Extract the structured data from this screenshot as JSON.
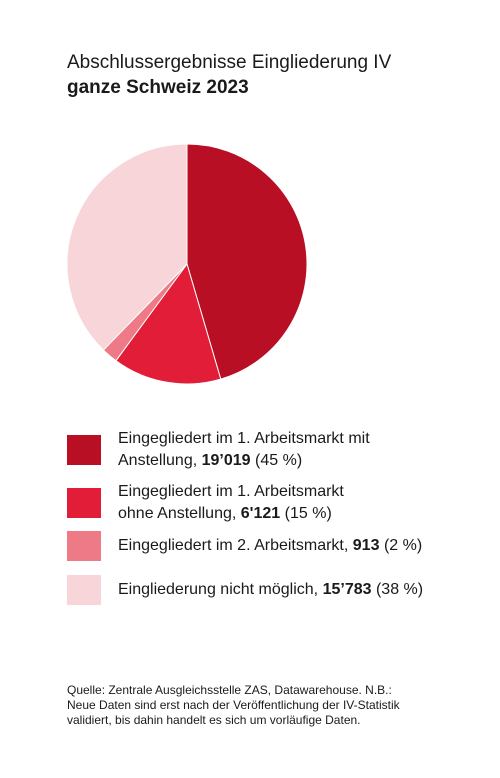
{
  "chart_data": {
    "type": "pie",
    "title": "Abschlussergebnisse Eingliederung IV",
    "subtitle": "ganze Schweiz 2023",
    "slices": [
      {
        "label_line1": "Eingegliedert im 1. Arbeitsmarkt mit",
        "label_line2": "Anstellung,",
        "value": 19019,
        "value_text": "19’019",
        "percent_text": "(45 %)",
        "color": "#b80f24"
      },
      {
        "label_line1": "Eingegliedert im 1. Arbeitsmarkt",
        "label_line2": "ohne Anstellung,",
        "value": 6121,
        "value_text": "6'121",
        "percent_text": "(15 %)",
        "color": "#e11d38"
      },
      {
        "label_line1": "Eingegliedert im 2. Arbeitsmarkt,",
        "label_line2": "",
        "value": 913,
        "value_text": "913",
        "percent_text": "(2 %)",
        "color": "#ee7a88"
      },
      {
        "label_line1": "Eingliederung nicht möglich,",
        "label_line2": "",
        "value": 15783,
        "value_text": "15’783",
        "percent_text": "(38 %)",
        "color": "#f8d5d9"
      }
    ]
  },
  "source": {
    "line1": "Quelle: Zentrale Ausgleichsstelle ZAS, Datawarehouse. N.B.:",
    "line2": "Neue Daten sind erst nach der Veröffentlichung der IV-Statistik",
    "line3": "validiert, bis dahin handelt es sich um vorläufige Daten."
  }
}
